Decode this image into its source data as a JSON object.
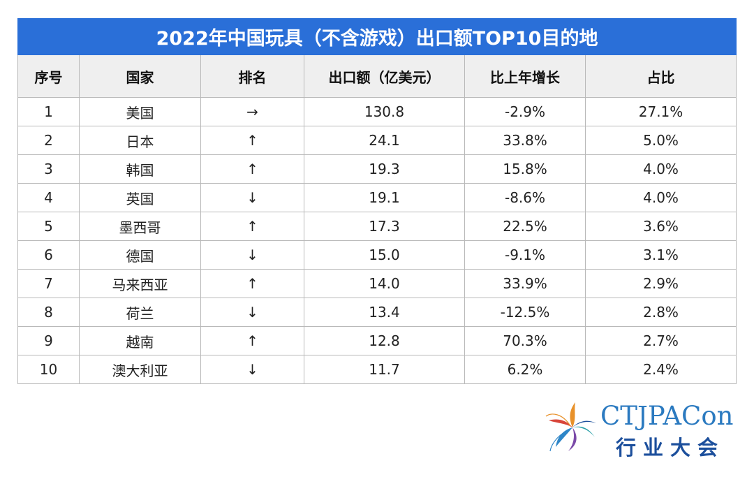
{
  "title": "2022年中国玩具（不含游戏）出口额TOP10目的地",
  "headers": [
    "序号",
    "国家",
    "排名",
    "出口额（亿美元）",
    "比上年增长",
    "占比"
  ],
  "rows": [
    [
      "1",
      "美国",
      "→",
      "130.8",
      "-2.9%",
      "27.1%"
    ],
    [
      "2",
      "日本",
      "↑",
      "24.1",
      "33.8%",
      "5.0%"
    ],
    [
      "3",
      "韩国",
      "↑",
      "19.3",
      "15.8%",
      "4.0%"
    ],
    [
      "4",
      "英国",
      "↓",
      "19.1",
      "-8.6%",
      "4.0%"
    ],
    [
      "5",
      "墨西哥",
      "↑",
      "17.3",
      "22.5%",
      "3.6%"
    ],
    [
      "6",
      "德国",
      "↓",
      "15.0",
      "-9.1%",
      "3.1%"
    ],
    [
      "7",
      "马来西亚",
      "↑",
      "14.0",
      "33.9%",
      "2.9%"
    ],
    [
      "8",
      "荷兰",
      "↓",
      "13.4",
      "-12.5%",
      "2.8%"
    ],
    [
      "9",
      "越南",
      "↑",
      "12.8",
      "70.3%",
      "2.7%"
    ],
    [
      "10",
      "澳大利亚",
      "↓",
      "11.7",
      "6.2%",
      "2.4%"
    ]
  ],
  "logo": {
    "en": "CTJPACon",
    "cn": "行业大会"
  },
  "colors": {
    "title_bg": "#2a6fd8",
    "header_bg": "#efefef",
    "border": "#b9b9b9",
    "logo_en": "#2b7ac0",
    "logo_cn": "#1c4f9c"
  }
}
